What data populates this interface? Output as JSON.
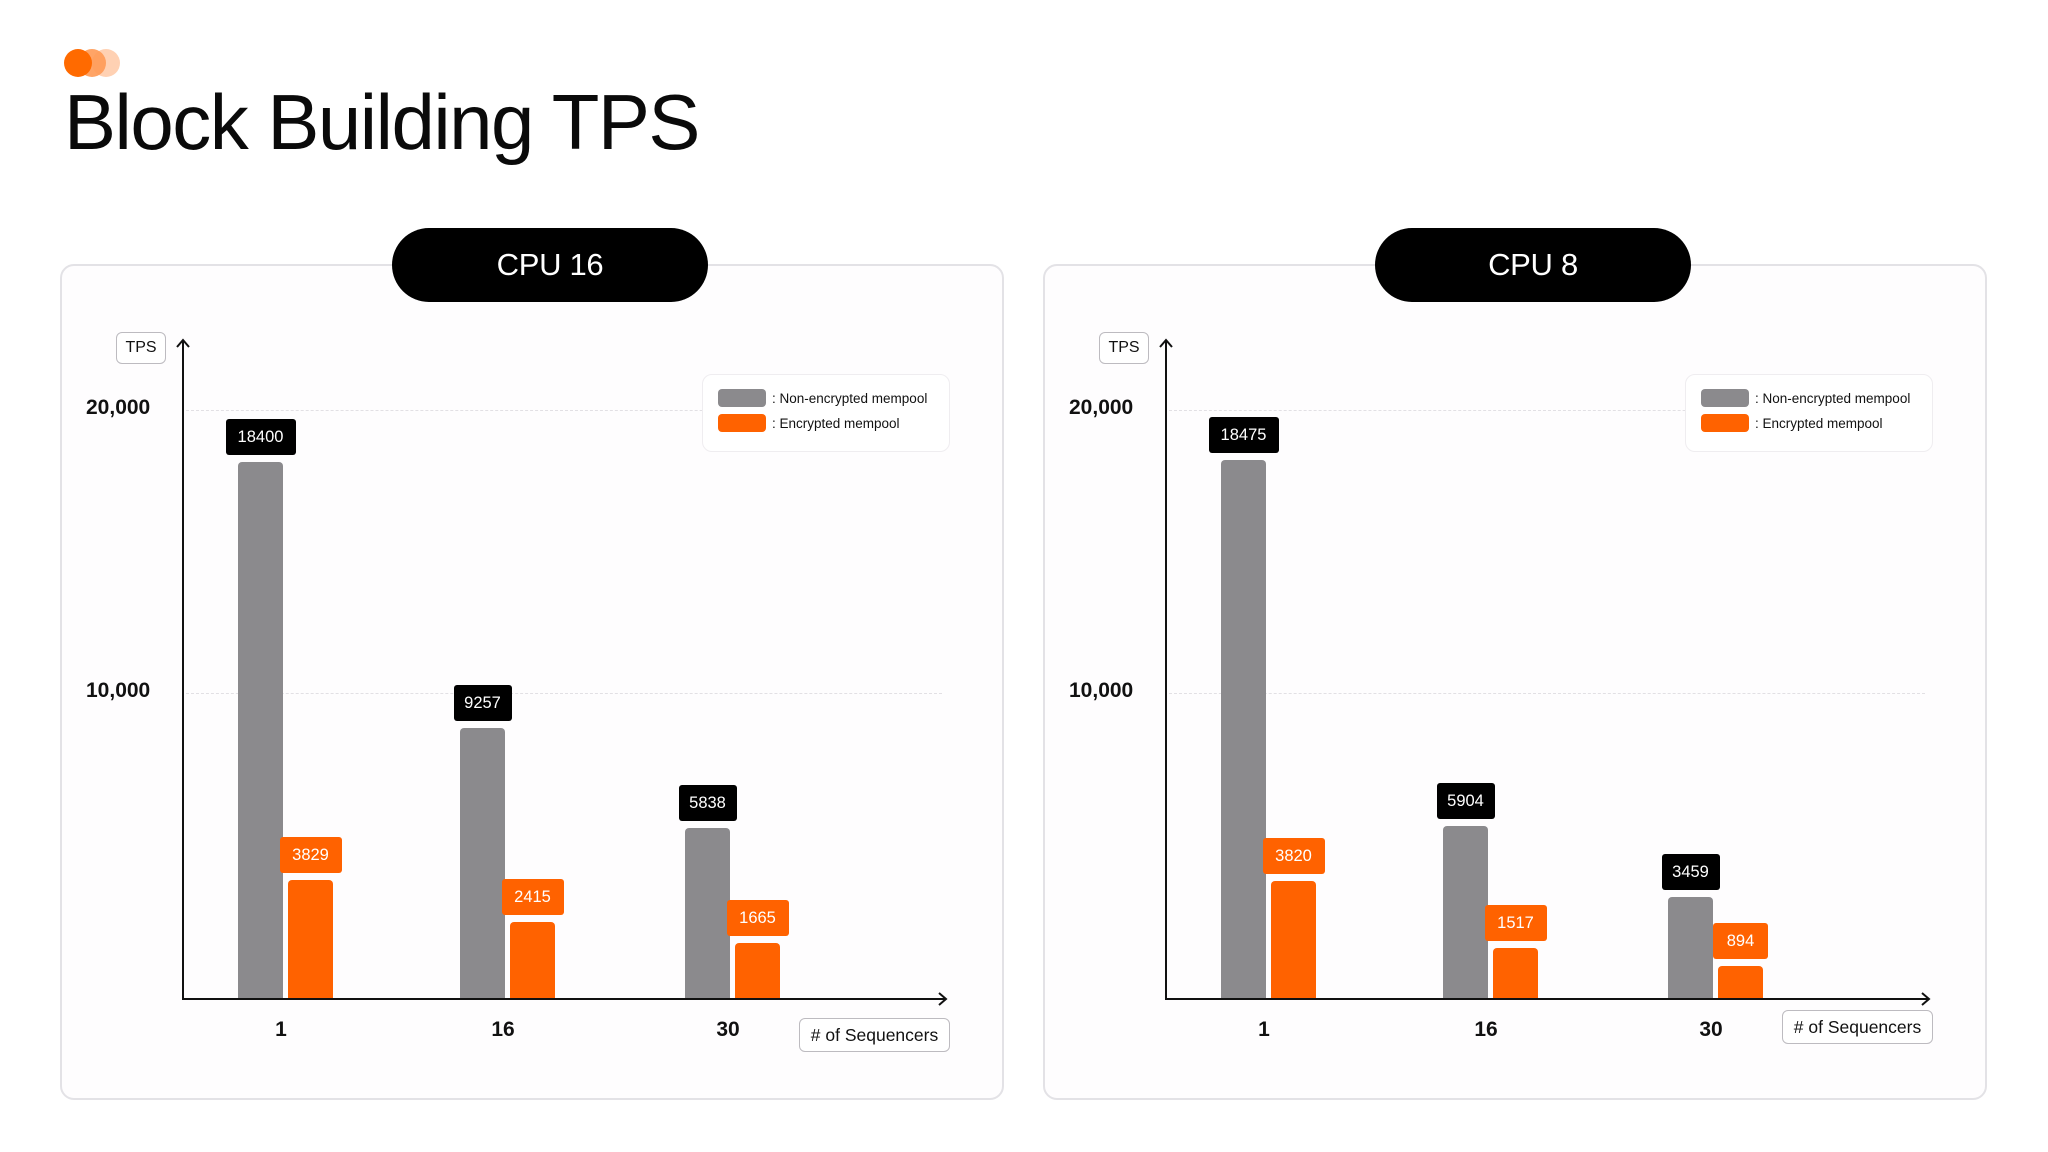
{
  "header": {
    "title": "Block Building TPS",
    "logo_colors": [
      "#ff6a00",
      "#ff9a55",
      "#ffc9a6"
    ]
  },
  "colors": {
    "non_encrypted": "#8b8a8d",
    "encrypted": "#ff6200",
    "label_dark": "#000000"
  },
  "panels": [
    {
      "title": "CPU 16",
      "y_axis_label": "TPS",
      "x_axis_label": "# of Sequencers",
      "ticks": [
        "20,000",
        "10,000"
      ],
      "legend": [
        ": Non-encrypted mempool",
        ": Encrypted mempool"
      ],
      "groups": [
        {
          "x": "1",
          "non_encrypted": "18400",
          "encrypted": "3829"
        },
        {
          "x": "16",
          "non_encrypted": "9257",
          "encrypted": "2415"
        },
        {
          "x": "30",
          "non_encrypted": "5838",
          "encrypted": "1665"
        }
      ]
    },
    {
      "title": "CPU 8",
      "y_axis_label": "TPS",
      "x_axis_label": "# of Sequencers",
      "ticks": [
        "20,000",
        "10,000"
      ],
      "legend": [
        ": Non-encrypted mempool",
        ": Encrypted mempool"
      ],
      "groups": [
        {
          "x": "1",
          "non_encrypted": "18475",
          "encrypted": "3820"
        },
        {
          "x": "16",
          "non_encrypted": "5904",
          "encrypted": "1517"
        },
        {
          "x": "30",
          "non_encrypted": "3459",
          "encrypted": "894"
        }
      ]
    }
  ],
  "chart_data": [
    {
      "type": "bar",
      "title": "CPU 16",
      "xlabel": "# of Sequencers",
      "ylabel": "TPS",
      "categories": [
        "1",
        "16",
        "30"
      ],
      "series": [
        {
          "name": "Non-encrypted mempool",
          "color": "#8b8a8d",
          "values": [
            18400,
            9257,
            5838
          ]
        },
        {
          "name": "Encrypted mempool",
          "color": "#ff6200",
          "values": [
            3829,
            2415,
            1665
          ]
        }
      ],
      "yticks": [
        10000,
        20000
      ],
      "ylim": [
        0,
        21000
      ],
      "grid": true,
      "legend_position": "top-right",
      "data_labels": true
    },
    {
      "type": "bar",
      "title": "CPU 8",
      "xlabel": "# of Sequencers",
      "ylabel": "TPS",
      "categories": [
        "1",
        "16",
        "30"
      ],
      "series": [
        {
          "name": "Non-encrypted mempool",
          "color": "#8b8a8d",
          "values": [
            18475,
            5904,
            3459
          ]
        },
        {
          "name": "Encrypted mempool",
          "color": "#ff6200",
          "values": [
            3820,
            1517,
            894
          ]
        }
      ],
      "yticks": [
        10000,
        20000
      ],
      "ylim": [
        0,
        21000
      ],
      "grid": true,
      "legend_position": "top-right",
      "data_labels": true
    }
  ]
}
